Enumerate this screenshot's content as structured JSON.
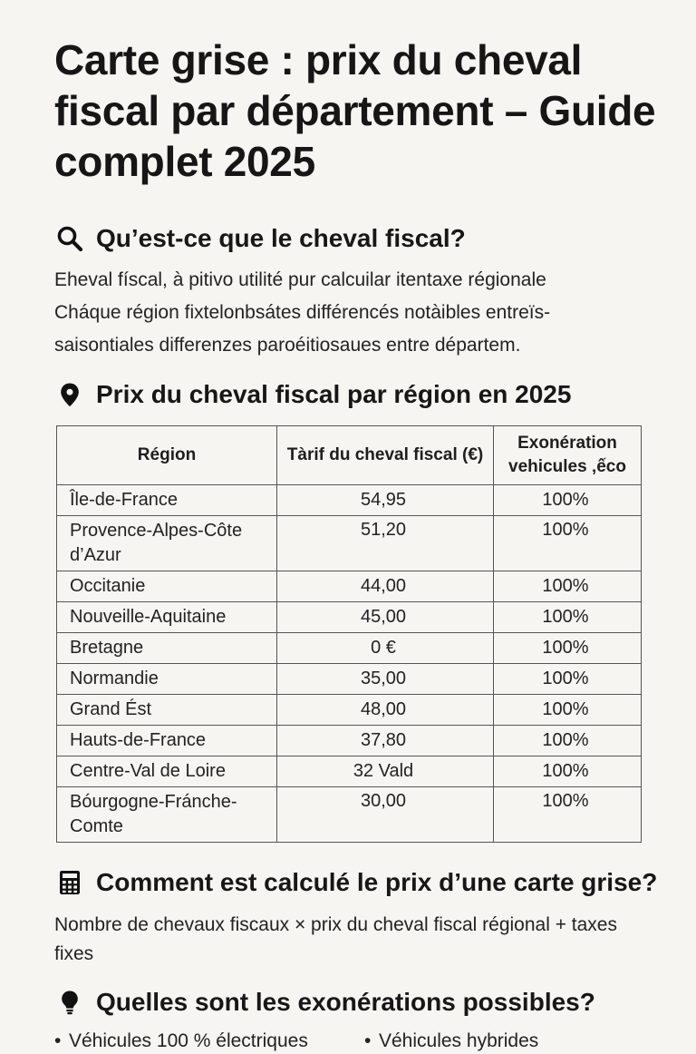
{
  "title": "Carte grise : prix du cheval fiscal par département – Guide complet 2025",
  "sections": {
    "what": {
      "icon": "search-icon",
      "heading": "Qu’est-ce que le cheval fiscal?",
      "lines": [
        "Eheval físcal, à pitivo utilité pur calcuilar itentaxe régionale",
        "Cháque région fixtelonbsátes différencés notàibles entreïs-",
        "saisontiales differenzes paroéitiosaues entre départem."
      ]
    },
    "prices": {
      "icon": "map-pin-icon",
      "heading": "Prix du cheval fiscal par région en 2025",
      "table": {
        "headers": {
          "region": "Région",
          "rate": "Tàrif du cheval fiscal (€)",
          "exemption": "Exonération vehicules ‚ếco"
        },
        "rows": [
          {
            "region": "Île-de-France",
            "rate": "54,95",
            "exemption": "100%"
          },
          {
            "region": "Provence-Alpes-Côte d’Azur",
            "rate": "51,20",
            "exemption": "100%"
          },
          {
            "region": "Occitanie",
            "rate": "44,00",
            "exemption": "100%"
          },
          {
            "region": "Nouveille-Aquitaine",
            "rate": "45,00",
            "exemption": "100%"
          },
          {
            "region": "Bretagne",
            "rate": "0 €",
            "exemption": "100%"
          },
          {
            "region": "Normandie",
            "rate": "35,00",
            "exemption": "100%"
          },
          {
            "region": "Grand Ést",
            "rate": "48,00",
            "exemption": "100%"
          },
          {
            "region": "Hauts-de-France",
            "rate": "37,80",
            "exemption": "100%"
          },
          {
            "region": "Centre-Val de Loire",
            "rate": "32 Vald",
            "exemption": "100%"
          },
          {
            "region": "Bóurgogne-Fránche-Comte",
            "rate": "30,00",
            "exemption": "100%"
          }
        ]
      }
    },
    "calc": {
      "icon": "calculator-icon",
      "heading": "Comment est calculé le prix d’une carte grise?",
      "formula": "Nombre de chevaux fiscaux × prix du cheval fiscal régional + taxes fixes"
    },
    "exemptions": {
      "icon": "lightbulb-icon",
      "heading": "Quelles sont les exonérations possibles?",
      "items": [
        "Véhicules 100 % électriques",
        "Véhicules hybrides"
      ]
    }
  }
}
